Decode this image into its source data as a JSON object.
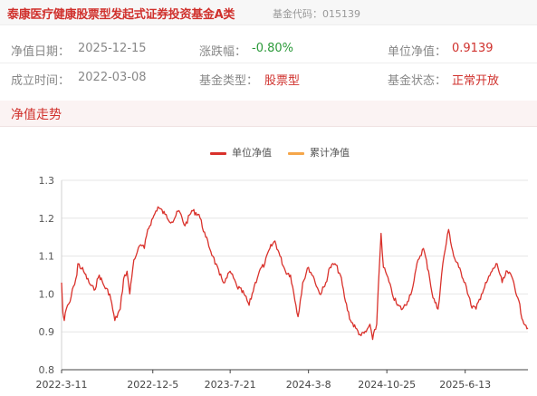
{
  "header": {
    "fund_name": "泰康医疗健康股票型发起式证券投资基金A类",
    "fund_code_label": "基金代码：",
    "fund_code": "015139"
  },
  "info": {
    "row1": [
      {
        "label": "净值日期：",
        "value": "2025-12-15",
        "tone": "gray"
      },
      {
        "label": "涨跌幅：",
        "value": "-0.80%",
        "tone": "green"
      },
      {
        "label": "单位净值：",
        "value": "0.9139",
        "tone": "red"
      }
    ],
    "row2": [
      {
        "label": "成立时间：",
        "value": "2022-03-08",
        "tone": "gray"
      },
      {
        "label": "基金类型：",
        "value": "股票型",
        "tone": "red"
      },
      {
        "label": "基金状态：",
        "value": "正常开放",
        "tone": "red"
      }
    ]
  },
  "section": {
    "title": "净值走势"
  },
  "colors": {
    "unit_nav": "#d9312b",
    "cumulative_nav": "#f5a64a",
    "accent": "#d0312d",
    "up": "#d0312d",
    "down": "#2c9a3a"
  },
  "chart_data": {
    "type": "line",
    "title": "",
    "xlabel": "",
    "ylabel": "",
    "ylim": [
      0.8,
      1.3
    ],
    "yticks": [
      "0.8",
      "0.9",
      "1.0",
      "1.1",
      "1.2",
      "1.3"
    ],
    "xticks": [
      "2022-3-11",
      "2022-12-5",
      "2023-7-21",
      "2024-3-8",
      "2024-10-25",
      "2025-6-13"
    ],
    "legend": [
      "单位净值",
      "累计净值"
    ],
    "legend_position": "top-center",
    "grid": true,
    "series": [
      {
        "name": "单位净值",
        "x": [
          "2022-03-11",
          "2022-03-15",
          "2022-03-19",
          "2022-03-25",
          "2022-04-05",
          "2022-04-15",
          "2022-04-25",
          "2022-04-28",
          "2022-05-15",
          "2022-05-31",
          "2022-06-15",
          "2022-06-30",
          "2022-07-15",
          "2022-07-31",
          "2022-08-15",
          "2022-08-31",
          "2022-09-10",
          "2022-09-20",
          "2022-09-28",
          "2022-10-10",
          "2022-10-20",
          "2022-10-30",
          "2022-11-10",
          "2022-11-20",
          "2022-12-05",
          "2022-12-20",
          "2023-01-10",
          "2023-01-30",
          "2023-02-20",
          "2023-03-10",
          "2023-03-30",
          "2023-04-20",
          "2023-05-10",
          "2023-05-31",
          "2023-06-20",
          "2023-07-05",
          "2023-07-21",
          "2023-08-10",
          "2023-08-31",
          "2023-09-15",
          "2023-09-30",
          "2023-10-15",
          "2023-10-31",
          "2023-11-15",
          "2023-11-30",
          "2023-12-15",
          "2023-12-31",
          "2024-01-15",
          "2024-01-31",
          "2024-02-06",
          "2024-02-20",
          "2024-03-08",
          "2024-03-25",
          "2024-04-10",
          "2024-04-25",
          "2024-05-10",
          "2024-05-25",
          "2024-06-10",
          "2024-06-25",
          "2024-07-10",
          "2024-07-25",
          "2024-08-10",
          "2024-08-25",
          "2024-09-05",
          "2024-09-13",
          "2024-09-25",
          "2024-09-30",
          "2024-10-08",
          "2024-10-15",
          "2024-10-25",
          "2024-11-10",
          "2024-11-25",
          "2024-12-10",
          "2024-12-25",
          "2025-01-10",
          "2025-01-25",
          "2025-02-10",
          "2025-02-25",
          "2025-03-10",
          "2025-03-25",
          "2025-04-08",
          "2025-04-25",
          "2025-05-10",
          "2025-05-25",
          "2025-06-13",
          "2025-06-30",
          "2025-07-15",
          "2025-07-31",
          "2025-08-15",
          "2025-08-31",
          "2025-09-15",
          "2025-09-30",
          "2025-10-15",
          "2025-10-31",
          "2025-11-15",
          "2025-11-30",
          "2025-12-15"
        ],
        "values": [
          1.03,
          0.95,
          0.93,
          0.96,
          0.98,
          1.02,
          1.05,
          1.08,
          1.06,
          1.03,
          1.01,
          1.05,
          1.02,
          1.0,
          0.93,
          0.96,
          1.04,
          1.06,
          1.0,
          1.09,
          1.11,
          1.13,
          1.12,
          1.17,
          1.2,
          1.23,
          1.21,
          1.19,
          1.22,
          1.18,
          1.22,
          1.21,
          1.15,
          1.1,
          1.05,
          1.03,
          1.06,
          1.02,
          1.0,
          0.97,
          1.02,
          1.06,
          1.08,
          1.12,
          1.14,
          1.1,
          1.06,
          1.05,
          0.97,
          0.94,
          1.03,
          1.07,
          1.04,
          1.0,
          1.02,
          1.07,
          1.08,
          1.05,
          0.98,
          0.93,
          0.91,
          0.89,
          0.9,
          0.92,
          0.88,
          0.92,
          1.02,
          1.16,
          1.07,
          1.05,
          1.0,
          0.97,
          0.96,
          0.98,
          1.02,
          1.09,
          1.12,
          1.06,
          0.99,
          0.96,
          1.08,
          1.17,
          1.1,
          1.07,
          1.03,
          0.97,
          0.96,
          1.0,
          1.03,
          1.06,
          1.08,
          1.03,
          1.06,
          1.04,
          0.99,
          0.93,
          0.91
        ]
      },
      {
        "name": "累计净值",
        "x": [],
        "values": []
      }
    ]
  }
}
